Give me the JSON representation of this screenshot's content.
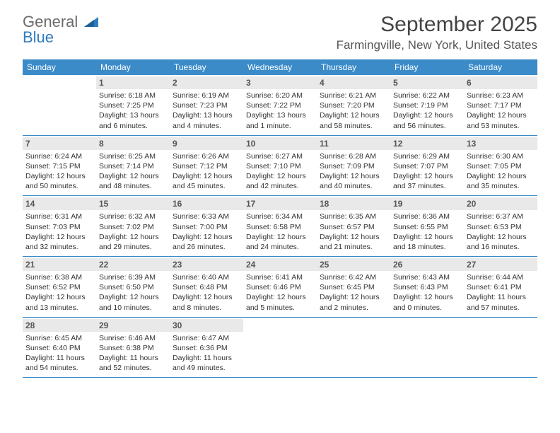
{
  "logo": {
    "line1": "General",
    "line2": "Blue"
  },
  "title": "September 2025",
  "location": "Farmingville, New York, United States",
  "dow_header_bg": "#3b8bc9",
  "dow_header_fg": "#ffffff",
  "daynum_bg": "#e9e9e9",
  "days_of_week": [
    "Sunday",
    "Monday",
    "Tuesday",
    "Wednesday",
    "Thursday",
    "Friday",
    "Saturday"
  ],
  "weeks": [
    [
      {
        "n": "",
        "sunrise": "",
        "sunset": "",
        "daylight": ""
      },
      {
        "n": "1",
        "sunrise": "Sunrise: 6:18 AM",
        "sunset": "Sunset: 7:25 PM",
        "daylight": "Daylight: 13 hours and 6 minutes."
      },
      {
        "n": "2",
        "sunrise": "Sunrise: 6:19 AM",
        "sunset": "Sunset: 7:23 PM",
        "daylight": "Daylight: 13 hours and 4 minutes."
      },
      {
        "n": "3",
        "sunrise": "Sunrise: 6:20 AM",
        "sunset": "Sunset: 7:22 PM",
        "daylight": "Daylight: 13 hours and 1 minute."
      },
      {
        "n": "4",
        "sunrise": "Sunrise: 6:21 AM",
        "sunset": "Sunset: 7:20 PM",
        "daylight": "Daylight: 12 hours and 58 minutes."
      },
      {
        "n": "5",
        "sunrise": "Sunrise: 6:22 AM",
        "sunset": "Sunset: 7:19 PM",
        "daylight": "Daylight: 12 hours and 56 minutes."
      },
      {
        "n": "6",
        "sunrise": "Sunrise: 6:23 AM",
        "sunset": "Sunset: 7:17 PM",
        "daylight": "Daylight: 12 hours and 53 minutes."
      }
    ],
    [
      {
        "n": "7",
        "sunrise": "Sunrise: 6:24 AM",
        "sunset": "Sunset: 7:15 PM",
        "daylight": "Daylight: 12 hours and 50 minutes."
      },
      {
        "n": "8",
        "sunrise": "Sunrise: 6:25 AM",
        "sunset": "Sunset: 7:14 PM",
        "daylight": "Daylight: 12 hours and 48 minutes."
      },
      {
        "n": "9",
        "sunrise": "Sunrise: 6:26 AM",
        "sunset": "Sunset: 7:12 PM",
        "daylight": "Daylight: 12 hours and 45 minutes."
      },
      {
        "n": "10",
        "sunrise": "Sunrise: 6:27 AM",
        "sunset": "Sunset: 7:10 PM",
        "daylight": "Daylight: 12 hours and 42 minutes."
      },
      {
        "n": "11",
        "sunrise": "Sunrise: 6:28 AM",
        "sunset": "Sunset: 7:09 PM",
        "daylight": "Daylight: 12 hours and 40 minutes."
      },
      {
        "n": "12",
        "sunrise": "Sunrise: 6:29 AM",
        "sunset": "Sunset: 7:07 PM",
        "daylight": "Daylight: 12 hours and 37 minutes."
      },
      {
        "n": "13",
        "sunrise": "Sunrise: 6:30 AM",
        "sunset": "Sunset: 7:05 PM",
        "daylight": "Daylight: 12 hours and 35 minutes."
      }
    ],
    [
      {
        "n": "14",
        "sunrise": "Sunrise: 6:31 AM",
        "sunset": "Sunset: 7:03 PM",
        "daylight": "Daylight: 12 hours and 32 minutes."
      },
      {
        "n": "15",
        "sunrise": "Sunrise: 6:32 AM",
        "sunset": "Sunset: 7:02 PM",
        "daylight": "Daylight: 12 hours and 29 minutes."
      },
      {
        "n": "16",
        "sunrise": "Sunrise: 6:33 AM",
        "sunset": "Sunset: 7:00 PM",
        "daylight": "Daylight: 12 hours and 26 minutes."
      },
      {
        "n": "17",
        "sunrise": "Sunrise: 6:34 AM",
        "sunset": "Sunset: 6:58 PM",
        "daylight": "Daylight: 12 hours and 24 minutes."
      },
      {
        "n": "18",
        "sunrise": "Sunrise: 6:35 AM",
        "sunset": "Sunset: 6:57 PM",
        "daylight": "Daylight: 12 hours and 21 minutes."
      },
      {
        "n": "19",
        "sunrise": "Sunrise: 6:36 AM",
        "sunset": "Sunset: 6:55 PM",
        "daylight": "Daylight: 12 hours and 18 minutes."
      },
      {
        "n": "20",
        "sunrise": "Sunrise: 6:37 AM",
        "sunset": "Sunset: 6:53 PM",
        "daylight": "Daylight: 12 hours and 16 minutes."
      }
    ],
    [
      {
        "n": "21",
        "sunrise": "Sunrise: 6:38 AM",
        "sunset": "Sunset: 6:52 PM",
        "daylight": "Daylight: 12 hours and 13 minutes."
      },
      {
        "n": "22",
        "sunrise": "Sunrise: 6:39 AM",
        "sunset": "Sunset: 6:50 PM",
        "daylight": "Daylight: 12 hours and 10 minutes."
      },
      {
        "n": "23",
        "sunrise": "Sunrise: 6:40 AM",
        "sunset": "Sunset: 6:48 PM",
        "daylight": "Daylight: 12 hours and 8 minutes."
      },
      {
        "n": "24",
        "sunrise": "Sunrise: 6:41 AM",
        "sunset": "Sunset: 6:46 PM",
        "daylight": "Daylight: 12 hours and 5 minutes."
      },
      {
        "n": "25",
        "sunrise": "Sunrise: 6:42 AM",
        "sunset": "Sunset: 6:45 PM",
        "daylight": "Daylight: 12 hours and 2 minutes."
      },
      {
        "n": "26",
        "sunrise": "Sunrise: 6:43 AM",
        "sunset": "Sunset: 6:43 PM",
        "daylight": "Daylight: 12 hours and 0 minutes."
      },
      {
        "n": "27",
        "sunrise": "Sunrise: 6:44 AM",
        "sunset": "Sunset: 6:41 PM",
        "daylight": "Daylight: 11 hours and 57 minutes."
      }
    ],
    [
      {
        "n": "28",
        "sunrise": "Sunrise: 6:45 AM",
        "sunset": "Sunset: 6:40 PM",
        "daylight": "Daylight: 11 hours and 54 minutes."
      },
      {
        "n": "29",
        "sunrise": "Sunrise: 6:46 AM",
        "sunset": "Sunset: 6:38 PM",
        "daylight": "Daylight: 11 hours and 52 minutes."
      },
      {
        "n": "30",
        "sunrise": "Sunrise: 6:47 AM",
        "sunset": "Sunset: 6:36 PM",
        "daylight": "Daylight: 11 hours and 49 minutes."
      },
      {
        "n": "",
        "sunrise": "",
        "sunset": "",
        "daylight": ""
      },
      {
        "n": "",
        "sunrise": "",
        "sunset": "",
        "daylight": ""
      },
      {
        "n": "",
        "sunrise": "",
        "sunset": "",
        "daylight": ""
      },
      {
        "n": "",
        "sunrise": "",
        "sunset": "",
        "daylight": ""
      }
    ]
  ]
}
